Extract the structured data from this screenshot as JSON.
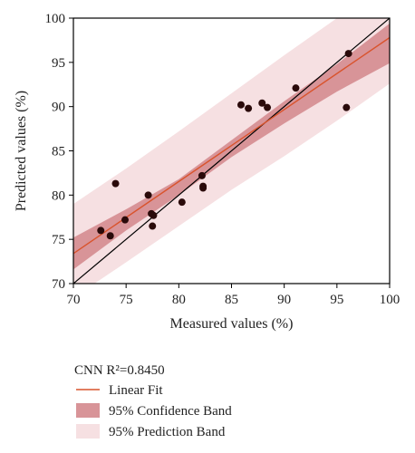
{
  "chart_data": {
    "type": "scatter",
    "title": "",
    "xlabel": "Measured values (%)",
    "ylabel": "Predicted values (%)",
    "xlim": [
      70,
      100
    ],
    "ylim": [
      70,
      100
    ],
    "xticks": [
      70,
      75,
      80,
      85,
      90,
      95,
      100
    ],
    "yticks": [
      70,
      75,
      80,
      85,
      90,
      95,
      100
    ],
    "grid": false,
    "legend_position": "bottom-left",
    "annotation": "CNN R²=0.8450",
    "series": [
      {
        "name": "CNN",
        "type": "scatter",
        "color": "#2a0a0a",
        "x": [
          72.6,
          73.5,
          74.0,
          74.9,
          77.1,
          77.4,
          77.5,
          77.6,
          80.3,
          82.2,
          82.3,
          82.3,
          85.9,
          86.6,
          87.9,
          88.4,
          91.1,
          95.9,
          96.1
        ],
        "y": [
          76.0,
          75.4,
          81.3,
          77.2,
          80.0,
          77.9,
          76.5,
          77.7,
          79.2,
          82.2,
          81.0,
          80.8,
          90.2,
          89.8,
          90.4,
          89.9,
          92.1,
          89.9,
          96.0
        ]
      },
      {
        "name": "Linear Fit",
        "type": "line",
        "color": "#d9532c",
        "x": [
          70,
          100
        ],
        "y": [
          73.4,
          97.8
        ]
      },
      {
        "name": "",
        "type": "line",
        "color": "#000000",
        "x": [
          70,
          100
        ],
        "y": [
          70,
          100
        ]
      },
      {
        "name": "95% Confidence Band",
        "type": "area",
        "color": "#d89498",
        "x": [
          70,
          75,
          80,
          85,
          90,
          95,
          100
        ],
        "upper": [
          75.2,
          78.4,
          81.8,
          86.2,
          90.6,
          94.8,
          99.4
        ],
        "lower": [
          71.6,
          76.0,
          80.0,
          84.3,
          88.1,
          91.7,
          94.9
        ]
      },
      {
        "name": "95% Prediction Band",
        "type": "area",
        "color": "#f6e0e2",
        "x": [
          70,
          75,
          80,
          85,
          90,
          95,
          100
        ],
        "upper": [
          79.0,
          83.0,
          87.2,
          91.5,
          95.8,
          100.0,
          100.0
        ],
        "lower": [
          68.4,
          72.4,
          76.5,
          80.6,
          84.4,
          88.4,
          92.6
        ]
      }
    ],
    "legend": [
      {
        "label": "Linear Fit",
        "symbol": "line",
        "color": "#d9532c"
      },
      {
        "label": "95% Confidence Band",
        "symbol": "box",
        "color": "#d89498"
      },
      {
        "label": "95% Prediction Band",
        "symbol": "box",
        "color": "#f6e0e2"
      }
    ]
  }
}
